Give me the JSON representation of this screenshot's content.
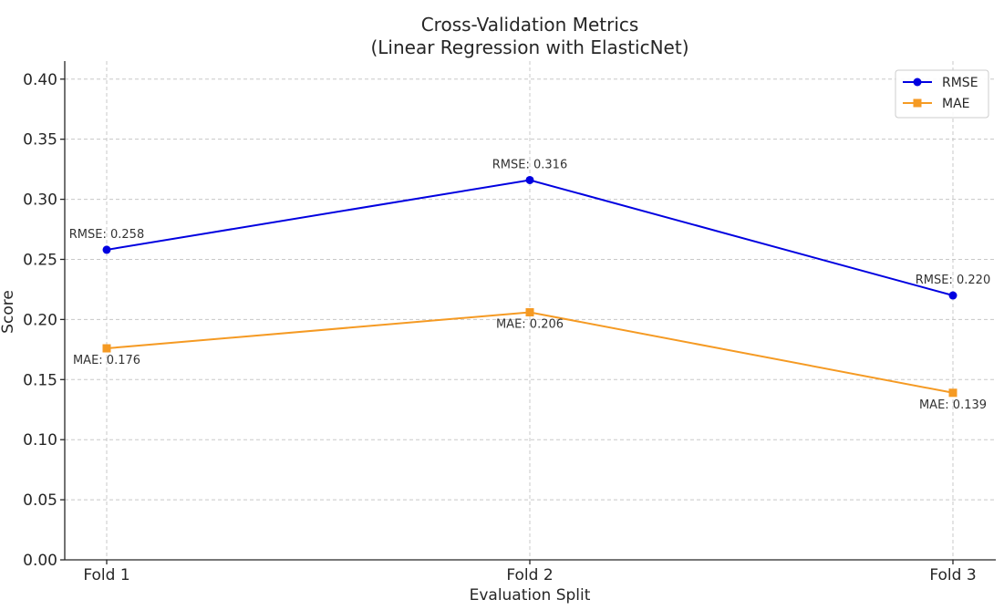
{
  "chart_data": {
    "type": "line",
    "title": [
      "Cross-Validation Metrics",
      "(Linear Regression with ElasticNet)"
    ],
    "xlabel": "Evaluation Split",
    "ylabel": "Score",
    "categories": [
      "Fold 1",
      "Fold 2",
      "Fold 3"
    ],
    "ylim": [
      0,
      0.415
    ],
    "yticks": [
      "0.00",
      "0.05",
      "0.10",
      "0.15",
      "0.20",
      "0.25",
      "0.30",
      "0.35",
      "0.40"
    ],
    "ytick_values": [
      0,
      0.05,
      0.1,
      0.15,
      0.2,
      0.25,
      0.3,
      0.35,
      0.4
    ],
    "grid": true,
    "legend_position": "top-right",
    "series": [
      {
        "name": "RMSE",
        "color": "#0000e0",
        "marker": "circle",
        "values": [
          0.258,
          0.316,
          0.22
        ],
        "labels": [
          "RMSE: 0.258",
          "RMSE: 0.316",
          "RMSE: 0.220"
        ]
      },
      {
        "name": "MAE",
        "color": "#f59a23",
        "marker": "square",
        "values": [
          0.176,
          0.206,
          0.139
        ],
        "labels": [
          "MAE: 0.176",
          "MAE: 0.206",
          "MAE: 0.139"
        ]
      }
    ]
  }
}
